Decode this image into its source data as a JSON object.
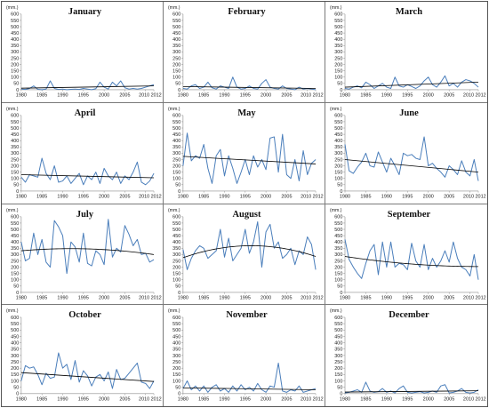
{
  "colors": {
    "series": "#4a7ebb",
    "trend": "#000000",
    "axis": "#8c8c8c"
  },
  "chart_data": [
    {
      "type": "line",
      "title": "January",
      "ylabel": "(mm.)",
      "x": [
        1980,
        1981,
        1982,
        1983,
        1984,
        1985,
        1986,
        1987,
        1988,
        1989,
        1990,
        1991,
        1992,
        1993,
        1994,
        1995,
        1996,
        1997,
        1998,
        1999,
        2000,
        2001,
        2002,
        2003,
        2004,
        2005,
        2006,
        2007,
        2008,
        2009,
        2010,
        2011,
        2012
      ],
      "values": [
        5,
        2,
        10,
        30,
        3,
        0,
        5,
        70,
        10,
        2,
        5,
        0,
        3,
        5,
        2,
        10,
        5,
        0,
        8,
        60,
        20,
        5,
        60,
        30,
        70,
        15,
        5,
        10,
        5,
        10,
        20,
        30,
        40
      ],
      "ylim": [
        0,
        600
      ],
      "y_ticks": [
        0,
        50,
        100,
        150,
        200,
        250,
        300,
        350,
        400,
        450,
        500,
        550,
        600
      ],
      "x_ticks": [
        1980,
        1985,
        1990,
        1995,
        2000,
        2005,
        2010,
        2012
      ],
      "trend": {
        "fit": "linear",
        "x": [
          1980,
          2012
        ],
        "y": [
          12,
          30
        ]
      },
      "grid": false
    },
    {
      "type": "line",
      "title": "February",
      "ylabel": "(mm.)",
      "x": [
        1980,
        1981,
        1982,
        1983,
        1984,
        1985,
        1986,
        1987,
        1988,
        1989,
        1990,
        1991,
        1992,
        1993,
        1994,
        1995,
        1996,
        1997,
        1998,
        1999,
        2000,
        2001,
        2002,
        2003,
        2004,
        2005,
        2006,
        2007,
        2008,
        2009,
        2010,
        2011,
        2012
      ],
      "values": [
        10,
        5,
        30,
        40,
        10,
        20,
        60,
        15,
        5,
        30,
        20,
        10,
        100,
        20,
        5,
        10,
        30,
        10,
        5,
        50,
        80,
        20,
        10,
        5,
        30,
        10,
        5,
        0,
        20,
        5,
        10,
        5,
        0
      ],
      "ylim": [
        0,
        600
      ],
      "y_ticks": [
        0,
        50,
        100,
        150,
        200,
        250,
        300,
        350,
        400,
        450,
        500,
        550,
        600
      ],
      "x_ticks": [
        1980,
        1985,
        1990,
        1995,
        2000,
        2005,
        2010,
        2012
      ],
      "trend": {
        "fit": "linear",
        "x": [
          1980,
          2012
        ],
        "y": [
          25,
          10
        ]
      },
      "grid": false
    },
    {
      "type": "line",
      "title": "March",
      "ylabel": "(mm.)",
      "x": [
        1980,
        1981,
        1982,
        1983,
        1984,
        1985,
        1986,
        1987,
        1988,
        1989,
        1990,
        1991,
        1992,
        1993,
        1994,
        1995,
        1996,
        1997,
        1998,
        1999,
        2000,
        2001,
        2002,
        2003,
        2004,
        2005,
        2006,
        2007,
        2008,
        2009,
        2010,
        2011,
        2012
      ],
      "values": [
        10,
        5,
        20,
        30,
        15,
        60,
        40,
        10,
        30,
        50,
        20,
        10,
        100,
        30,
        20,
        40,
        25,
        10,
        30,
        70,
        100,
        40,
        20,
        60,
        110,
        30,
        50,
        20,
        60,
        80,
        70,
        50,
        20
      ],
      "ylim": [
        0,
        600
      ],
      "y_ticks": [
        0,
        50,
        100,
        150,
        200,
        250,
        300,
        350,
        400,
        450,
        500,
        550,
        600
      ],
      "x_ticks": [
        1980,
        1985,
        1990,
        1995,
        2000,
        2005,
        2010,
        2012
      ],
      "trend": {
        "fit": "linear",
        "x": [
          1980,
          2012
        ],
        "y": [
          20,
          60
        ]
      },
      "grid": false
    },
    {
      "type": "line",
      "title": "April",
      "ylabel": "(mm.)",
      "x": [
        1980,
        1981,
        1982,
        1983,
        1984,
        1985,
        1986,
        1987,
        1988,
        1989,
        1990,
        1991,
        1992,
        1993,
        1994,
        1995,
        1996,
        1997,
        1998,
        1999,
        2000,
        2001,
        2002,
        2003,
        2004,
        2005,
        2006,
        2007,
        2008,
        2009,
        2010,
        2011,
        2012
      ],
      "values": [
        110,
        70,
        130,
        120,
        110,
        260,
        140,
        90,
        200,
        70,
        80,
        120,
        60,
        100,
        140,
        50,
        120,
        90,
        150,
        60,
        180,
        120,
        90,
        150,
        60,
        120,
        90,
        150,
        230,
        70,
        50,
        80,
        140
      ],
      "ylim": [
        0,
        600
      ],
      "y_ticks": [
        0,
        50,
        100,
        150,
        200,
        250,
        300,
        350,
        400,
        450,
        500,
        550,
        600
      ],
      "x_ticks": [
        1980,
        1985,
        1990,
        1995,
        2000,
        2005,
        2010,
        2012
      ],
      "trend": {
        "fit": "linear",
        "x": [
          1980,
          2012
        ],
        "y": [
          130,
          105
        ]
      },
      "grid": false
    },
    {
      "type": "line",
      "title": "May",
      "ylabel": "(mm.)",
      "x": [
        1980,
        1981,
        1982,
        1983,
        1984,
        1985,
        1986,
        1987,
        1988,
        1989,
        1990,
        1991,
        1992,
        1993,
        1994,
        1995,
        1996,
        1997,
        1998,
        1999,
        2000,
        2001,
        2002,
        2003,
        2004,
        2005,
        2006,
        2007,
        2008,
        2009,
        2010,
        2011,
        2012
      ],
      "values": [
        200,
        460,
        240,
        280,
        260,
        370,
        180,
        60,
        280,
        330,
        120,
        280,
        180,
        60,
        150,
        250,
        130,
        280,
        190,
        250,
        170,
        420,
        430,
        150,
        450,
        130,
        100,
        250,
        80,
        320,
        130,
        220,
        250
      ],
      "ylim": [
        0,
        600
      ],
      "y_ticks": [
        0,
        50,
        100,
        150,
        200,
        250,
        300,
        350,
        400,
        450,
        500,
        550,
        600
      ],
      "x_ticks": [
        1980,
        1985,
        1990,
        1995,
        2000,
        2005,
        2010,
        2012
      ],
      "trend": {
        "fit": "linear",
        "x": [
          1980,
          2012
        ],
        "y": [
          275,
          215
        ]
      },
      "grid": false
    },
    {
      "type": "line",
      "title": "June",
      "ylabel": "(mm.)",
      "x": [
        1980,
        1981,
        1982,
        1983,
        1984,
        1985,
        1986,
        1987,
        1988,
        1989,
        1990,
        1991,
        1992,
        1993,
        1994,
        1995,
        1996,
        1997,
        1998,
        1999,
        2000,
        2001,
        2002,
        2003,
        2004,
        2005,
        2006,
        2007,
        2008,
        2009,
        2010,
        2011,
        2012
      ],
      "values": [
        370,
        160,
        140,
        190,
        230,
        300,
        200,
        190,
        310,
        230,
        150,
        260,
        200,
        130,
        300,
        280,
        290,
        260,
        250,
        430,
        200,
        220,
        180,
        150,
        110,
        200,
        170,
        130,
        240,
        150,
        120,
        250,
        80
      ],
      "ylim": [
        0,
        600
      ],
      "y_ticks": [
        0,
        50,
        100,
        150,
        200,
        250,
        300,
        350,
        400,
        450,
        500,
        550,
        600
      ],
      "x_ticks": [
        1980,
        1985,
        1990,
        1995,
        2000,
        2005,
        2010,
        2012
      ],
      "trend": {
        "fit": "linear",
        "x": [
          1980,
          2012
        ],
        "y": [
          250,
          150
        ]
      },
      "grid": false
    },
    {
      "type": "line",
      "title": "July",
      "ylabel": "(mm.)",
      "x": [
        1980,
        1981,
        1982,
        1983,
        1984,
        1985,
        1986,
        1987,
        1988,
        1989,
        1990,
        1991,
        1992,
        1993,
        1994,
        1995,
        1996,
        1997,
        1998,
        1999,
        2000,
        2001,
        2002,
        2003,
        2004,
        2005,
        2006,
        2007,
        2008,
        2009,
        2010,
        2011,
        2012
      ],
      "values": [
        400,
        250,
        270,
        470,
        300,
        420,
        240,
        200,
        570,
        520,
        450,
        150,
        400,
        360,
        240,
        470,
        230,
        210,
        330,
        300,
        220,
        580,
        280,
        350,
        320,
        530,
        460,
        370,
        420,
        300,
        310,
        240,
        260
      ],
      "ylim": [
        0,
        600
      ],
      "y_ticks": [
        0,
        50,
        100,
        150,
        200,
        250,
        300,
        350,
        400,
        450,
        500,
        550,
        600
      ],
      "x_ticks": [
        1980,
        1985,
        1990,
        1995,
        2000,
        2005,
        2010,
        2012
      ],
      "trend": {
        "fit": "polynomial",
        "x": [
          1980,
          1996,
          2012
        ],
        "y": [
          330,
          345,
          300
        ]
      },
      "grid": false
    },
    {
      "type": "line",
      "title": "August",
      "ylabel": "(mm.)",
      "x": [
        1980,
        1981,
        1982,
        1983,
        1984,
        1985,
        1986,
        1987,
        1988,
        1989,
        1990,
        1991,
        1992,
        1993,
        1994,
        1995,
        1996,
        1997,
        1998,
        1999,
        2000,
        2001,
        2002,
        2003,
        2004,
        2005,
        2006,
        2007,
        2008,
        2009,
        2010,
        2011,
        2012
      ],
      "values": [
        340,
        180,
        270,
        330,
        370,
        350,
        270,
        300,
        330,
        500,
        280,
        430,
        250,
        300,
        350,
        500,
        310,
        400,
        560,
        200,
        480,
        540,
        350,
        400,
        270,
        300,
        350,
        220,
        330,
        300,
        440,
        380,
        180
      ],
      "ylim": [
        0,
        600
      ],
      "y_ticks": [
        0,
        50,
        100,
        150,
        200,
        250,
        300,
        350,
        400,
        450,
        500,
        550,
        600
      ],
      "x_ticks": [
        1980,
        1985,
        1990,
        1995,
        2000,
        2005,
        2010,
        2012
      ],
      "trend": {
        "fit": "polynomial",
        "x": [
          1980,
          1996,
          2012
        ],
        "y": [
          275,
          370,
          285
        ]
      },
      "grid": false
    },
    {
      "type": "line",
      "title": "September",
      "ylabel": "(mm.)",
      "x": [
        1980,
        1981,
        1982,
        1983,
        1984,
        1985,
        1986,
        1987,
        1988,
        1989,
        1990,
        1991,
        1992,
        1993,
        1994,
        1995,
        1996,
        1997,
        1998,
        1999,
        2000,
        2001,
        2002,
        2003,
        2004,
        2005,
        2006,
        2007,
        2008,
        2009,
        2010,
        2011,
        2012
      ],
      "values": [
        420,
        260,
        200,
        150,
        110,
        230,
        330,
        380,
        140,
        400,
        200,
        400,
        200,
        230,
        220,
        180,
        390,
        250,
        200,
        380,
        180,
        270,
        200,
        250,
        330,
        240,
        400,
        270,
        200,
        180,
        130,
        300,
        100
      ],
      "ylim": [
        0,
        600
      ],
      "y_ticks": [
        0,
        50,
        100,
        150,
        200,
        250,
        300,
        350,
        400,
        450,
        500,
        550,
        600
      ],
      "x_ticks": [
        1980,
        1985,
        1990,
        1995,
        2000,
        2005,
        2010,
        2012
      ],
      "trend": {
        "fit": "polynomial",
        "x": [
          1980,
          1996,
          2012
        ],
        "y": [
          285,
          225,
          205
        ]
      },
      "grid": false
    },
    {
      "type": "line",
      "title": "October",
      "ylabel": "(mm.)",
      "x": [
        1980,
        1981,
        1982,
        1983,
        1984,
        1985,
        1986,
        1987,
        1988,
        1989,
        1990,
        1991,
        1992,
        1993,
        1994,
        1995,
        1996,
        1997,
        1998,
        1999,
        2000,
        2001,
        2002,
        2003,
        2004,
        2005,
        2006,
        2007,
        2008,
        2009,
        2010,
        2011,
        2012
      ],
      "values": [
        100,
        220,
        200,
        210,
        150,
        70,
        160,
        120,
        130,
        320,
        200,
        230,
        110,
        260,
        90,
        180,
        140,
        60,
        130,
        150,
        100,
        170,
        40,
        190,
        110,
        120,
        160,
        200,
        240,
        90,
        80,
        40,
        100
      ],
      "ylim": [
        0,
        600
      ],
      "y_ticks": [
        0,
        50,
        100,
        150,
        200,
        250,
        300,
        350,
        400,
        450,
        500,
        550,
        600
      ],
      "x_ticks": [
        1980,
        1985,
        1990,
        1995,
        2000,
        2005,
        2010,
        2012
      ],
      "trend": {
        "fit": "linear",
        "x": [
          1980,
          2012
        ],
        "y": [
          165,
          95
        ]
      },
      "grid": false
    },
    {
      "type": "line",
      "title": "November",
      "ylabel": "(mm.)",
      "x": [
        1980,
        1981,
        1982,
        1983,
        1984,
        1985,
        1986,
        1987,
        1988,
        1989,
        1990,
        1991,
        1992,
        1993,
        1994,
        1995,
        1996,
        1997,
        1998,
        1999,
        2000,
        2001,
        2002,
        2003,
        2004,
        2005,
        2006,
        2007,
        2008,
        2009,
        2010,
        2011,
        2012
      ],
      "values": [
        40,
        100,
        30,
        60,
        20,
        60,
        10,
        50,
        70,
        20,
        40,
        10,
        60,
        20,
        70,
        30,
        50,
        20,
        80,
        30,
        10,
        60,
        50,
        240,
        20,
        10,
        30,
        20,
        60,
        10,
        20,
        30,
        40
      ],
      "ylim": [
        0,
        600
      ],
      "y_ticks": [
        0,
        50,
        100,
        150,
        200,
        250,
        300,
        350,
        400,
        450,
        500,
        550,
        600
      ],
      "x_ticks": [
        1980,
        1985,
        1990,
        1995,
        2000,
        2005,
        2010,
        2012
      ],
      "trend": {
        "fit": "linear",
        "x": [
          1980,
          2012
        ],
        "y": [
          45,
          30
        ]
      },
      "grid": false
    },
    {
      "type": "line",
      "title": "December",
      "ylabel": "(mm.)",
      "x": [
        1980,
        1981,
        1982,
        1983,
        1984,
        1985,
        1986,
        1987,
        1988,
        1989,
        1990,
        1991,
        1992,
        1993,
        1994,
        1995,
        1996,
        1997,
        1998,
        1999,
        2000,
        2001,
        2002,
        2003,
        2004,
        2005,
        2006,
        2007,
        2008,
        2009,
        2010,
        2011,
        2012
      ],
      "values": [
        5,
        10,
        20,
        30,
        10,
        90,
        20,
        10,
        15,
        40,
        10,
        20,
        5,
        40,
        60,
        10,
        5,
        10,
        15,
        5,
        10,
        20,
        10,
        60,
        70,
        5,
        10,
        20,
        40,
        10,
        5,
        10,
        30
      ],
      "ylim": [
        0,
        600
      ],
      "y_ticks": [
        0,
        50,
        100,
        150,
        200,
        250,
        300,
        350,
        400,
        450,
        500,
        550,
        600
      ],
      "x_ticks": [
        1980,
        1985,
        1990,
        1995,
        2000,
        2005,
        2010,
        2012
      ],
      "trend": {
        "fit": "linear",
        "x": [
          1980,
          2012
        ],
        "y": [
          12,
          22
        ]
      },
      "grid": false
    }
  ]
}
